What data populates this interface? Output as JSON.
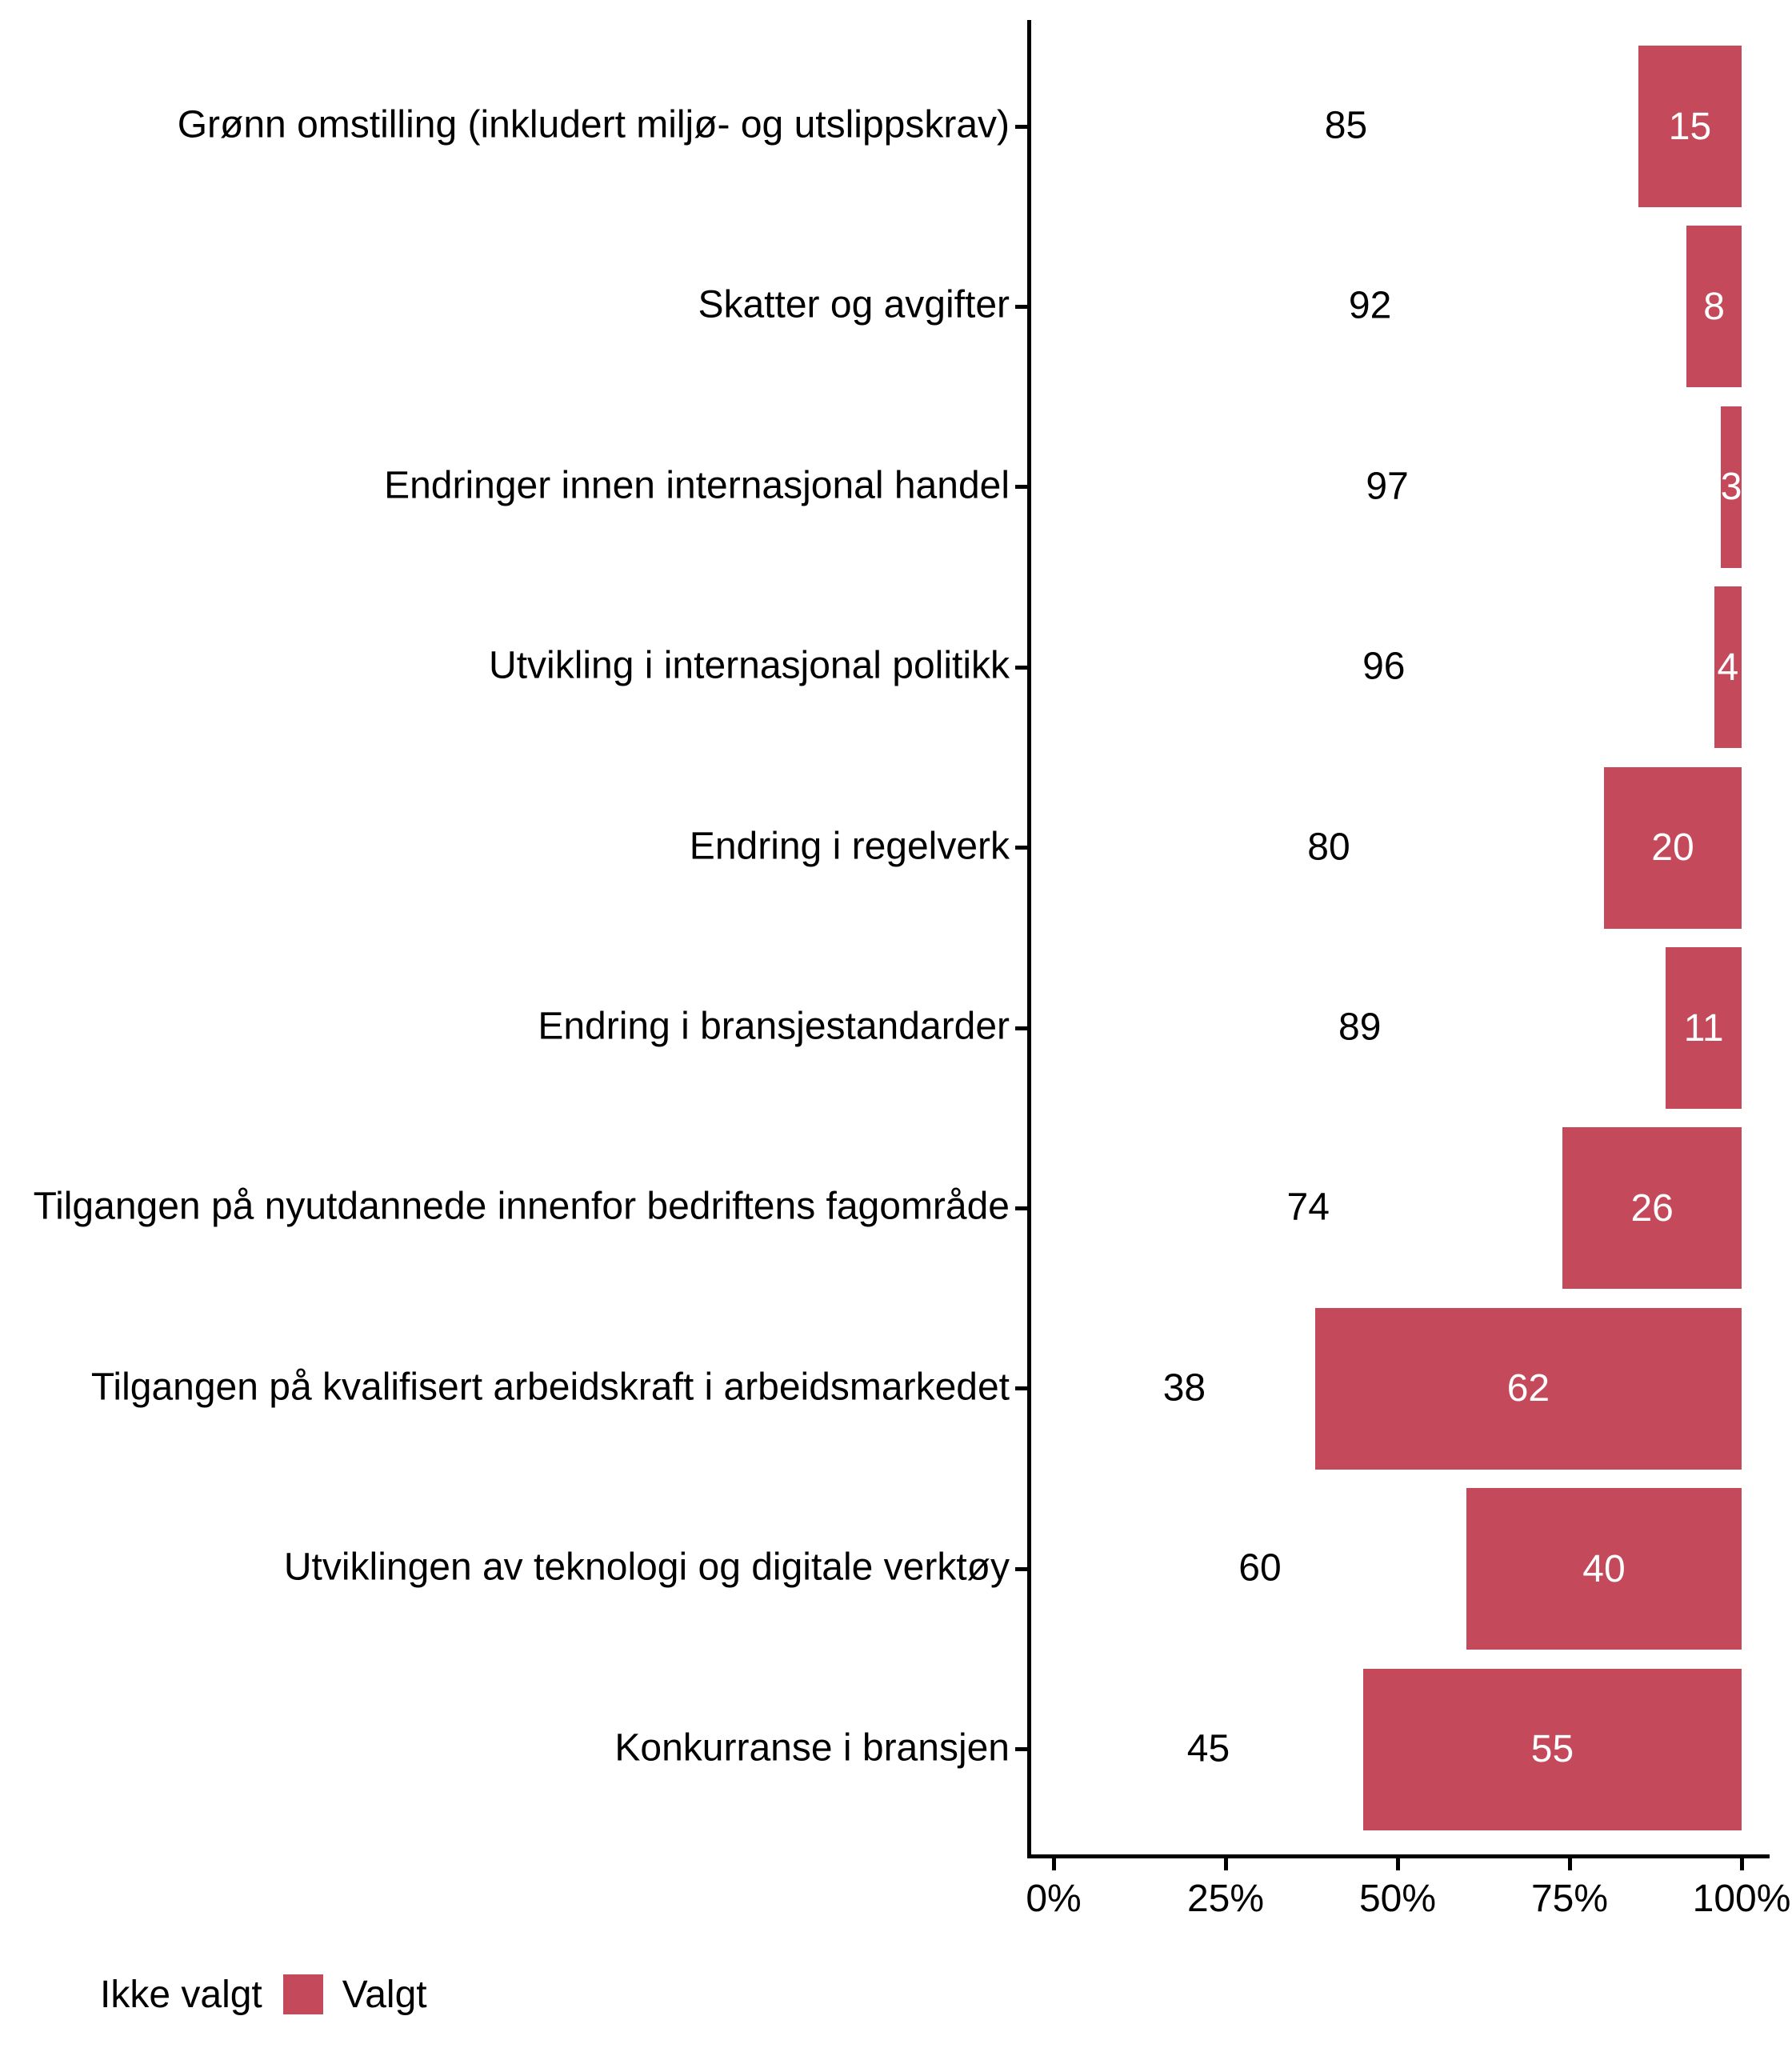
{
  "chart_data": {
    "type": "bar",
    "orientation": "horizontal",
    "stacked": true,
    "title": "",
    "categories": [
      "Grønn omstilling (inkludert miljø- og utslippskrav)",
      "Skatter og avgifter",
      "Endringer innen internasjonal handel",
      "Utvikling i internasjonal politikk",
      "Endring i regelverk",
      "Endring i bransjestandarder",
      "Tilgangen på nyutdannede innenfor bedriftens fagområde",
      "Tilgangen på kvalifisert arbeidskraft i arbeidsmarkedet",
      "Utviklingen av teknologi og digitale verktøy",
      "Konkurranse i bransjen"
    ],
    "series": [
      {
        "name": "Ikke valgt",
        "color": "#FFFFFF",
        "label_color": "#000000",
        "values": [
          85,
          92,
          97,
          96,
          80,
          89,
          74,
          38,
          60,
          45
        ]
      },
      {
        "name": "Valgt",
        "color": "#C4495A",
        "label_color": "#FFFFFF",
        "values": [
          15,
          8,
          3,
          4,
          20,
          11,
          26,
          62,
          40,
          55
        ]
      }
    ],
    "x_axis": {
      "tick_values": [
        0,
        25,
        50,
        75,
        100
      ],
      "tick_labels": [
        "0%",
        "25%",
        "50%",
        "75%",
        "100%"
      ],
      "min": 0,
      "max": 100,
      "grid": false
    },
    "y_axis": {
      "label": ""
    },
    "legend": {
      "position": "bottom-left",
      "items": [
        {
          "label": "Ikke valgt",
          "swatch": "#FFFFFF"
        },
        {
          "label": "Valgt",
          "swatch": "#C4495A"
        }
      ]
    },
    "colors": {
      "axis": "#000000",
      "text": "#000000",
      "bar_value_text": "#FFFFFF",
      "background": "#FFFFFF"
    }
  }
}
